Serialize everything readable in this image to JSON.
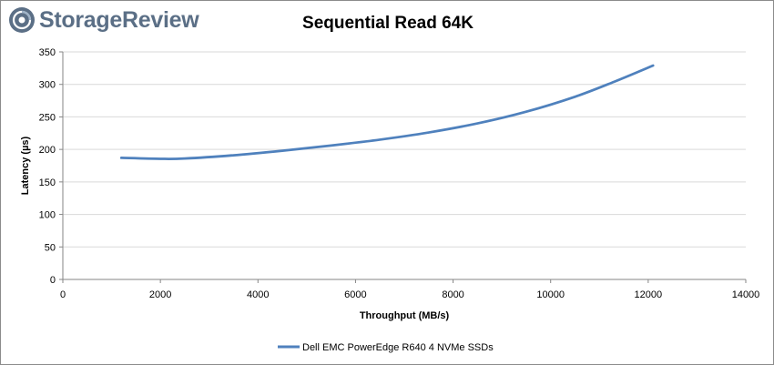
{
  "brand": {
    "name": "StorageReview",
    "color": "#5b6f86"
  },
  "chart_data": {
    "type": "line",
    "title": "Sequential Read 64K",
    "xlabel": "Throughput (MB/s)",
    "ylabel": "Latency (µs)",
    "xlim": [
      0,
      14000
    ],
    "ylim": [
      0,
      350
    ],
    "x_ticks": [
      0,
      2000,
      4000,
      6000,
      8000,
      10000,
      12000,
      14000
    ],
    "y_ticks": [
      0,
      50,
      100,
      150,
      200,
      250,
      300,
      350
    ],
    "grid": true,
    "legend_position": "bottom",
    "series": [
      {
        "name": "Dell EMC PowerEdge R640 4 NVMe SSDs",
        "color": "#4f81bd",
        "x": [
          1200,
          2000,
          2500,
          3500,
          4500,
          5500,
          6500,
          7500,
          8500,
          9500,
          10500,
          11300,
          12100
        ],
        "y": [
          187,
          185.5,
          186,
          191,
          198,
          206,
          215,
          226,
          240,
          258,
          281,
          304,
          329
        ]
      }
    ]
  }
}
